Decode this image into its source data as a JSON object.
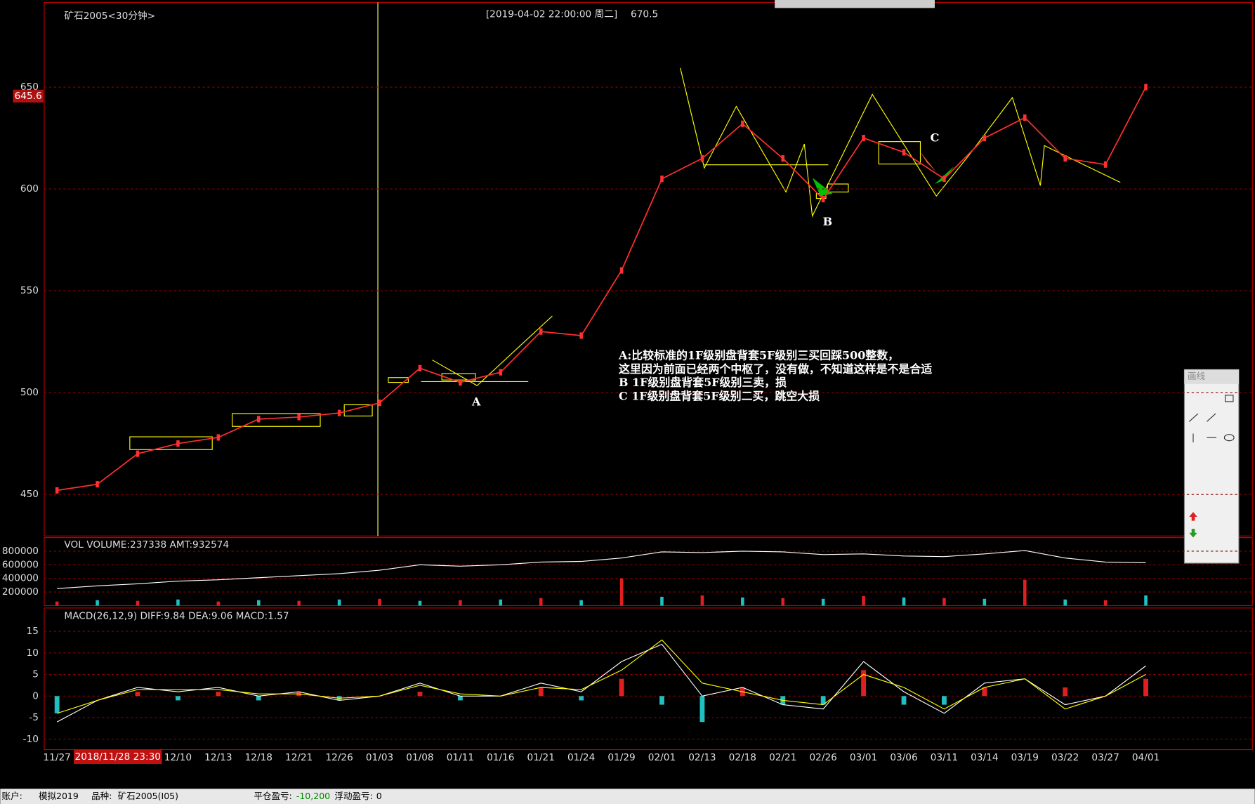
{
  "header": {
    "title": "矿石2005<30分钟>",
    "datetime": "[2019-04-02  22:00:00 周二]",
    "price": "670.5"
  },
  "chart_data": [
    {
      "type": "line",
      "categories": [
        "11/27",
        null,
        null,
        "12/10",
        "12/13",
        "12/18",
        "12/21",
        "12/26",
        "01/03",
        "01/08",
        "01/11",
        "01/16",
        "01/21",
        "01/24",
        "01/29",
        "02/01",
        "02/13",
        "02/18",
        "02/21",
        "02/26",
        "03/01",
        "03/06",
        "03/11",
        "03/14",
        "03/19",
        "03/22",
        "03/27",
        "04/01"
      ],
      "series": [
        {
          "color": "#ff3030",
          "values": [
            452,
            455,
            470,
            475,
            478,
            487,
            488,
            490,
            495,
            512,
            505,
            510,
            530,
            528,
            560,
            605,
            615,
            632,
            615,
            595,
            625,
            618,
            605,
            625,
            635,
            615,
            612,
            650
          ]
        }
      ],
      "ylim": [
        429.6,
        691.6
      ],
      "yticks": [
        450,
        500,
        550,
        600,
        650
      ],
      "grid": true,
      "current_price": 645.6,
      "cursor_label": "2018/11/28 23:30",
      "annotation": [
        "A:比较标准的1F级别盘背套5F级别三买回踩500整数，",
        "这里因为前面已经两个中枢了，没有做，不知道这样是不是合适",
        "B 1F级别盘背套5F级别三卖，损",
        "C 1F级别盘背套5F级别二买，跳空大损"
      ],
      "point_labels": [
        "A",
        "B",
        "C"
      ]
    },
    {
      "type": "bar",
      "title": "VOL  VOLUME:237338 AMT:932574",
      "colors": [
        "#e02020",
        "#20c0c0"
      ],
      "series": [
        {
          "values": [
            60000,
            80000,
            70000,
            90000,
            60000,
            80000,
            70000,
            90000,
            100000,
            70000,
            80000,
            90000,
            110000,
            80000,
            400000,
            130000,
            150000,
            120000,
            110000,
            100000,
            140000,
            120000,
            110000,
            100000,
            380000,
            90000,
            80000,
            150000
          ]
        },
        {
          "color": "#ffffff",
          "values": [
            250000,
            290000,
            320000,
            360000,
            380000,
            410000,
            440000,
            470000,
            520000,
            600000,
            580000,
            600000,
            640000,
            650000,
            700000,
            790000,
            780000,
            800000,
            790000,
            750000,
            760000,
            730000,
            720000,
            760000,
            810000,
            700000,
            640000,
            630000
          ]
        }
      ],
      "ylim": [
        0,
        1000000
      ],
      "yticks": [
        200000,
        400000,
        600000,
        800000
      ],
      "grid": true
    },
    {
      "type": "macd",
      "title": "MACD(26,12,9)  DIFF:9.84 DEA:9.06 MACD:1.57",
      "colors": {
        "up": "#e02020",
        "down": "#20c0c0"
      },
      "series": [
        {
          "color": "#ffffff",
          "values": [
            -6,
            -1,
            2,
            1,
            2,
            0,
            1,
            -1,
            0,
            3,
            0,
            0,
            3,
            1,
            8,
            12,
            0,
            2,
            -2,
            -3,
            8,
            1,
            -4,
            3,
            4,
            -2,
            0,
            7
          ]
        },
        {
          "color": "#ffff00",
          "values": [
            -4,
            -1,
            1.5,
            1.5,
            1.5,
            0.5,
            0.5,
            -0.5,
            0,
            2.5,
            0.5,
            0,
            2,
            1.5,
            6,
            13,
            3,
            1,
            -1,
            -2,
            5,
            2,
            -3,
            2,
            4,
            -3,
            0,
            5
          ]
        },
        {
          "values": [
            -4,
            0,
            1,
            -1,
            1,
            -1,
            1,
            -1,
            0,
            1,
            -1,
            0,
            2,
            -1,
            4,
            -2,
            -6,
            2,
            -2,
            -2,
            6,
            -2,
            -2,
            2,
            0,
            2,
            0,
            4
          ]
        }
      ],
      "ylim": [
        -12.4,
        20.4
      ],
      "yticks": [
        -10,
        -5,
        0,
        5,
        10,
        15
      ],
      "grid": true
    }
  ],
  "status_bar": {
    "account_label": "账户:",
    "account": "模拟2019",
    "symbol_label": "品种:",
    "symbol": "矿石2005(I05)",
    "closed_pl_label": "平仓盈亏:",
    "closed_pl": "-10,200",
    "float_pl_label": "浮动盈亏:",
    "float_pl": "0"
  },
  "toolbox": {
    "title": "画线"
  }
}
